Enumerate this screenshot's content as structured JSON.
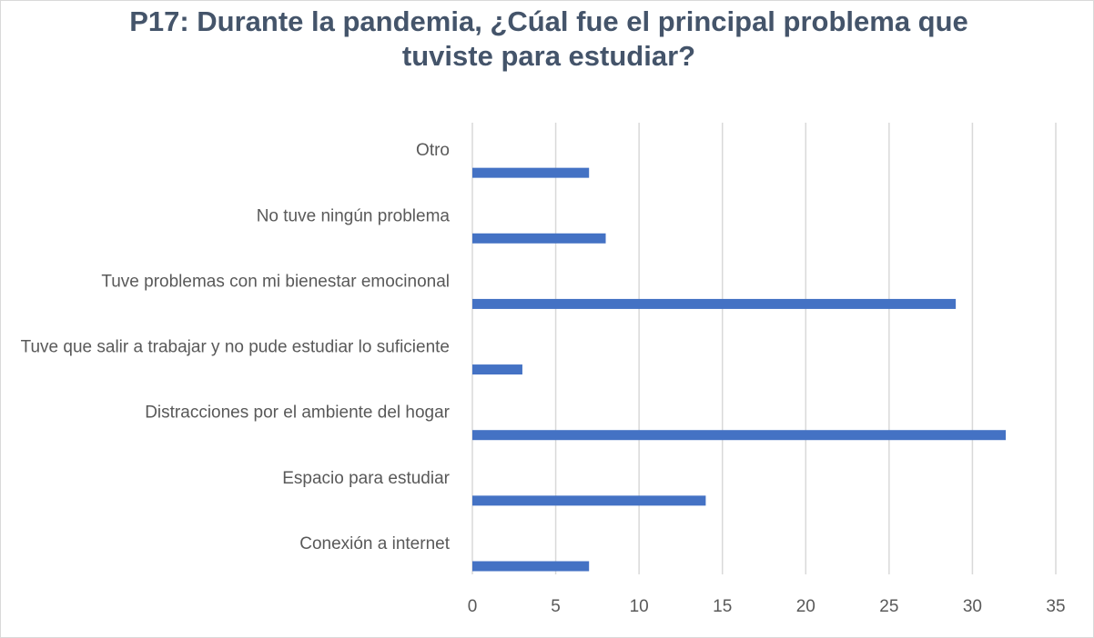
{
  "chart_data": {
    "type": "bar",
    "orientation": "horizontal",
    "title": "P17: Durante la pandemia, ¿Cúal fue el principal problema que tuviste para estudiar?",
    "categories": [
      "Otro",
      "No tuve ningún problema",
      "Tuve problemas con mi bienestar emocinonal",
      "Tuve que salir a trabajar y no pude estudiar lo suficiente",
      "Distracciones por el ambiente del hogar",
      "Espacio para estudiar",
      "Conexión a internet"
    ],
    "values": [
      7,
      8,
      29,
      3,
      32,
      14,
      7
    ],
    "color": "#4472c4",
    "xlim": [
      0,
      35
    ],
    "xticks": [
      0,
      5,
      10,
      15,
      20,
      25,
      30,
      35
    ],
    "grid": true
  }
}
